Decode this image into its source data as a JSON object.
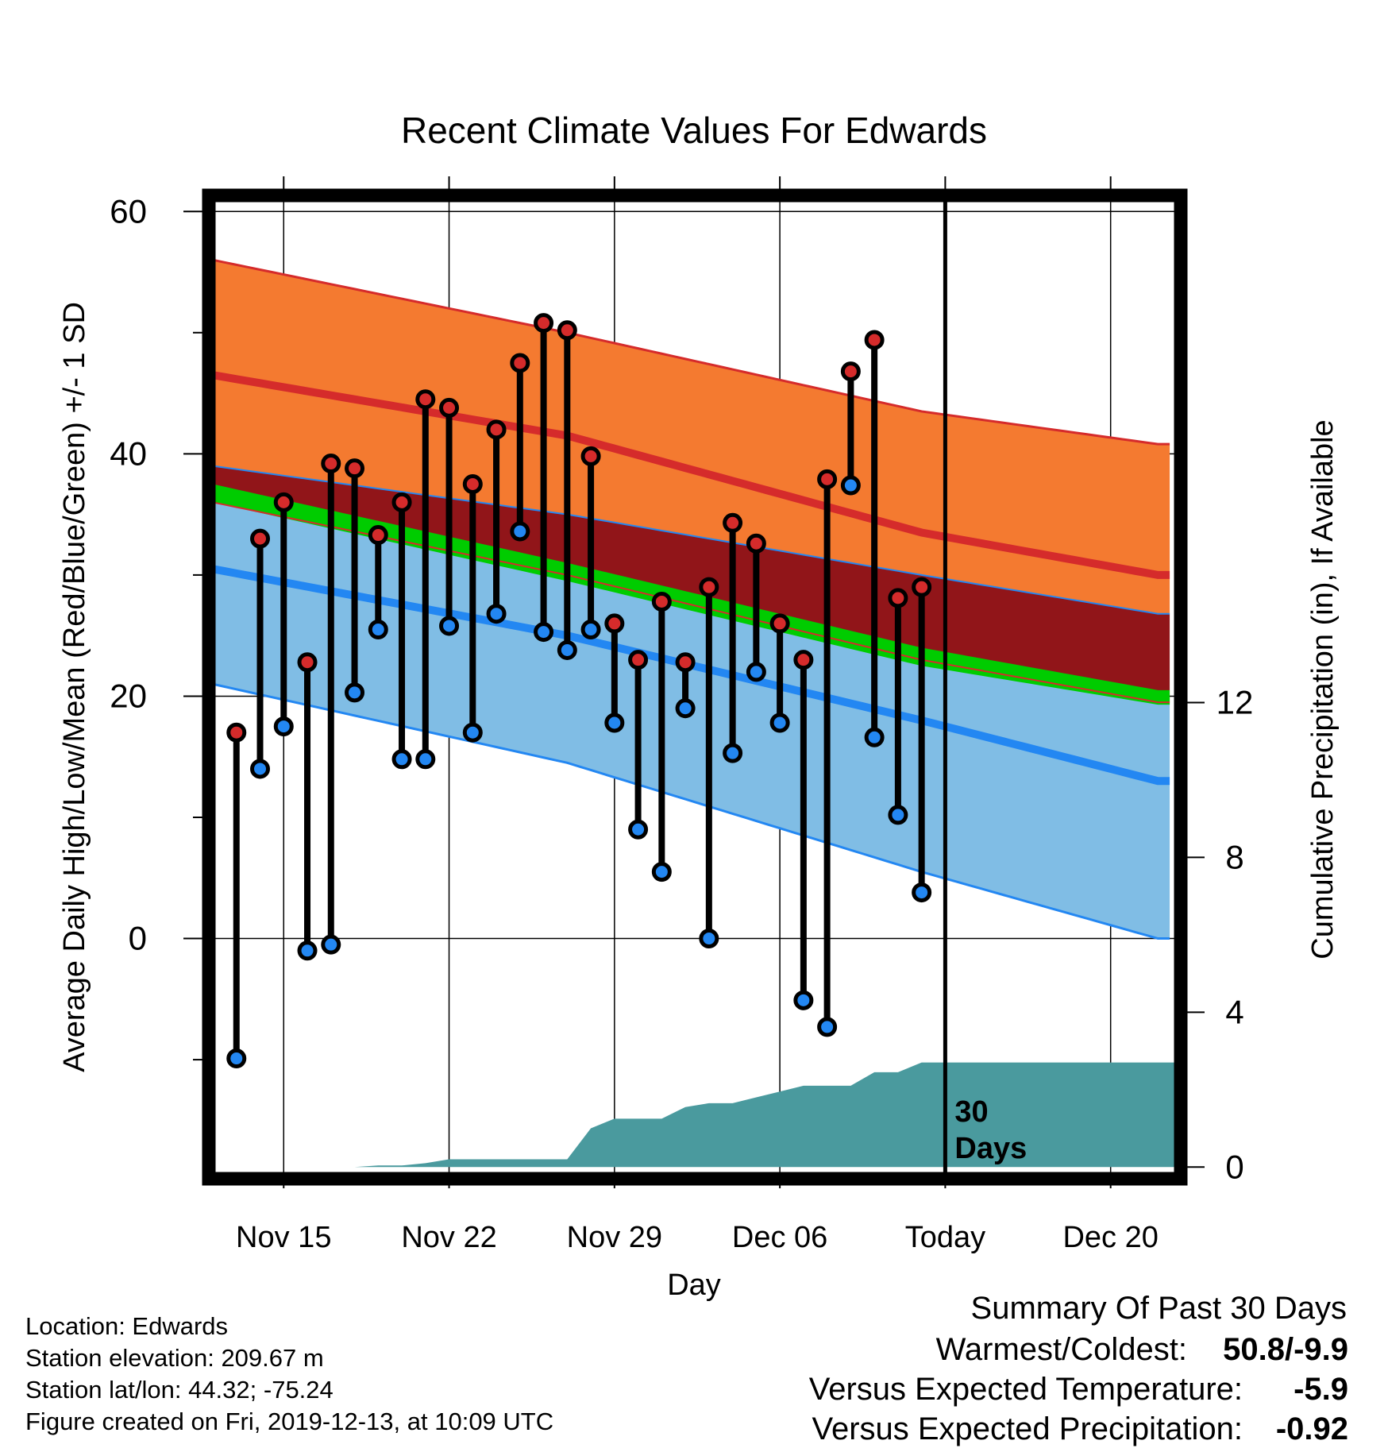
{
  "chart_data": {
    "type": "line",
    "title": "Recent Climate Values For Edwards",
    "xlabel": "Day",
    "ylabel": "Average Daily High/Low/Mean (Red/Blue/Green) +/- 1 SD",
    "y2label": "Cumulative Precipitation (in), If Available",
    "ylim": [
      -19.5,
      61
    ],
    "y2lim": [
      -0.2,
      25
    ],
    "x_tick_labels": [
      "Nov 15",
      "Nov 22",
      "Nov 29",
      "Dec 06",
      "Today",
      "Dec 20"
    ],
    "x_tick_days": [
      3,
      10,
      17,
      24,
      31,
      38
    ],
    "y_ticks": [
      0,
      20,
      40,
      60
    ],
    "y2_ticks": [
      0,
      4,
      8,
      12
    ],
    "grid": true,
    "today_day": 31,
    "today_label": "30\nDays",
    "normal_high": {
      "days": [
        0,
        15,
        30,
        40
      ],
      "mean": [
        46.5,
        41.5,
        33.5,
        30
      ],
      "upper": [
        56,
        50,
        43.5,
        40.8
      ],
      "lower": [
        39,
        35,
        30,
        26.8
      ]
    },
    "normal_low": {
      "days": [
        0,
        15,
        30,
        40
      ],
      "mean": [
        30.5,
        25,
        18,
        13
      ],
      "upper": [
        36,
        30,
        23,
        19.5
      ],
      "lower": [
        21,
        14.5,
        5.5,
        0
      ]
    },
    "normal_mean": {
      "days": [
        0,
        15,
        30,
        40
      ],
      "upper": [
        37.5,
        31,
        24,
        20.5
      ],
      "lower": [
        36,
        29.5,
        22.5,
        19.3
      ]
    },
    "series": [
      {
        "name": "High",
        "days": [
          1,
          2,
          3,
          4,
          5,
          6,
          7,
          8,
          9,
          10,
          11,
          12,
          13,
          14,
          15,
          16,
          17,
          18,
          19,
          20,
          21,
          22,
          23,
          24,
          25,
          26,
          27,
          28,
          29,
          30
        ],
        "values": [
          17,
          33,
          36,
          22.8,
          39.2,
          38.8,
          33.3,
          36,
          44.5,
          43.8,
          37.5,
          42,
          47.5,
          50.8,
          50.2,
          39.8,
          26,
          23,
          27.8,
          22.8,
          29,
          34.3,
          32.6,
          26,
          23,
          37.9,
          46.8,
          49.4,
          28.1,
          29
        ]
      },
      {
        "name": "Low",
        "days": [
          1,
          2,
          3,
          4,
          5,
          6,
          7,
          8,
          9,
          10,
          11,
          12,
          13,
          14,
          15,
          16,
          17,
          18,
          19,
          20,
          21,
          22,
          23,
          24,
          25,
          26,
          27,
          28,
          29,
          30
        ],
        "values": [
          -9.9,
          14,
          17.5,
          -1,
          -0.5,
          20.3,
          25.5,
          14.8,
          14.8,
          25.8,
          17,
          26.8,
          33.6,
          25.3,
          23.8,
          25.5,
          17.8,
          9,
          5.5,
          19,
          0,
          15.3,
          22,
          17.8,
          -5.1,
          -7.3,
          37.4,
          16.6,
          10.2,
          3.8
        ]
      }
    ],
    "precipitation": {
      "days": [
        6,
        7,
        8,
        9,
        10,
        11,
        12,
        13,
        14,
        15,
        16,
        17,
        18,
        19,
        20,
        21,
        22,
        23,
        24,
        25,
        26,
        27,
        28,
        29,
        30,
        31,
        32,
        33,
        34,
        35,
        36,
        37,
        38,
        39,
        40
      ],
      "values": [
        0,
        0.04,
        0.04,
        0.1,
        0.2,
        0.2,
        0.2,
        0.2,
        0.2,
        0.2,
        1.0,
        1.25,
        1.25,
        1.25,
        1.55,
        1.65,
        1.65,
        1.8,
        1.95,
        2.1,
        2.1,
        2.1,
        2.45,
        2.45,
        2.7,
        2.7,
        2.7,
        2.7,
        2.7,
        2.7,
        2.7,
        2.7,
        2.7,
        2.7,
        2.7
      ]
    },
    "colors": {
      "high_band": "#f47a30",
      "high_line": "#d52b2b",
      "low_band": "#80bde5",
      "low_line": "#2387f2",
      "overlap": "#911519",
      "mean_band": "#00cc00",
      "precip": "#4a9a9e",
      "high_marker": "#d52b2b",
      "low_marker": "#2387f2"
    }
  },
  "footer": {
    "location": "Location: Edwards",
    "elevation": "Station elevation: 209.67 m",
    "latlon": "Station lat/lon: 44.32; -75.24",
    "created": "Figure created on Fri, 2019-12-13, at 10:09 UTC"
  },
  "summary": {
    "title": "Summary Of Past 30 Days",
    "warmest_label": "Warmest/Coldest:",
    "warmest_value": "50.8/-9.9",
    "temp_label": "Versus Expected Temperature:",
    "temp_value": "-5.9",
    "temp_color": "#2387f2",
    "precip_label": "Versus Expected Precipitation:",
    "precip_value": "-0.92",
    "precip_color": "#a0522d"
  }
}
